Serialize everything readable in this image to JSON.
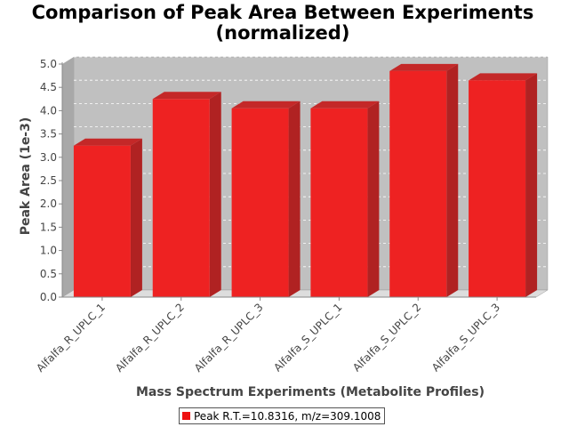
{
  "chart_data": {
    "type": "bar",
    "title": "Comparison of Peak Area Between Experiments",
    "subtitle": "(normalized)",
    "xlabel": "Mass Spectrum Experiments (Metabolite Profiles)",
    "ylabel": "Peak Area (1e-3)",
    "categories": [
      "Alfalfa_R_UPLC_1",
      "Alfalfa_R_UPLC_2",
      "Alfalfa_R_UPLC_3",
      "Alfalfa_S_UPLC_1",
      "Alfalfa_S_UPLC_2",
      "Alfalfa_S_UPLC_3"
    ],
    "series": [
      {
        "name": "Peak R.T.=10.8316, m/z=309.1008",
        "values": [
          3.25,
          4.25,
          4.05,
          4.05,
          4.85,
          4.65
        ],
        "color": "#ee2222"
      }
    ],
    "ylim": [
      0,
      5.0
    ],
    "yticks": [
      "0.0",
      "0.5",
      "1.0",
      "1.5",
      "2.0",
      "2.5",
      "3.0",
      "3.5",
      "4.0",
      "4.5",
      "5.0"
    ],
    "grid": true,
    "legend_position": "bottom",
    "plot_background": "#c0c0c0"
  }
}
